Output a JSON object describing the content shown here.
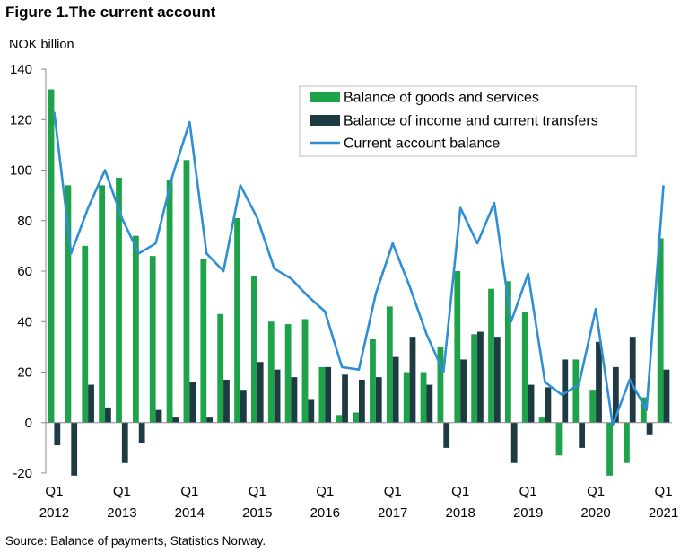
{
  "figure": {
    "title": "Figure 1.The current account",
    "unit_label": "NOK billion",
    "source": "Source: Balance of payments, Statistics Norway."
  },
  "chart_data": {
    "type": "bar",
    "ylim": [
      -20,
      140
    ],
    "yticks": [
      -20,
      0,
      20,
      40,
      60,
      80,
      100,
      120,
      140
    ],
    "grid": false,
    "legend_position": "top-right",
    "x_tick_labels": [
      {
        "quarter": "Q1",
        "year": "2012"
      },
      {
        "quarter": "Q1",
        "year": "2013"
      },
      {
        "quarter": "Q1",
        "year": "2014"
      },
      {
        "quarter": "Q1",
        "year": "2015"
      },
      {
        "quarter": "Q1",
        "year": "2016"
      },
      {
        "quarter": "Q1",
        "year": "2017"
      },
      {
        "quarter": "Q1",
        "year": "2018"
      },
      {
        "quarter": "Q1",
        "year": "2019"
      },
      {
        "quarter": "Q1",
        "year": "2020"
      },
      {
        "quarter": "Q1",
        "year": "2021"
      }
    ],
    "series": [
      {
        "name": "Balance of goods and services",
        "kind": "bar",
        "color": "#1fa34a",
        "values": [
          132,
          94,
          70,
          94,
          97,
          74,
          66,
          96,
          104,
          65,
          43,
          81,
          58,
          40,
          39,
          41,
          22,
          3,
          4,
          33,
          46,
          20,
          20,
          30,
          60,
          35,
          53,
          56,
          44,
          2,
          -13,
          25,
          13,
          -21,
          -16,
          10,
          73
        ]
      },
      {
        "name": "Balance of income and current transfers",
        "kind": "bar",
        "color": "#1e3b43",
        "values": [
          -9,
          -21,
          15,
          6,
          -16,
          -8,
          5,
          2,
          16,
          2,
          17,
          13,
          24,
          21,
          18,
          9,
          22,
          19,
          17,
          18,
          26,
          34,
          15,
          -10,
          25,
          36,
          34,
          -16,
          15,
          14,
          25,
          -10,
          32,
          22,
          34,
          -5,
          21
        ]
      },
      {
        "name": "Current account balance",
        "kind": "line",
        "color": "#2e8fd6",
        "values": [
          123,
          67,
          85,
          100,
          81,
          67,
          71,
          98,
          119,
          67,
          60,
          94,
          81,
          61,
          57,
          50,
          44,
          22,
          21,
          51,
          71,
          54,
          35,
          20,
          85,
          71,
          87,
          40,
          59,
          16,
          11,
          15,
          45,
          -1,
          17,
          5,
          94
        ]
      }
    ]
  }
}
